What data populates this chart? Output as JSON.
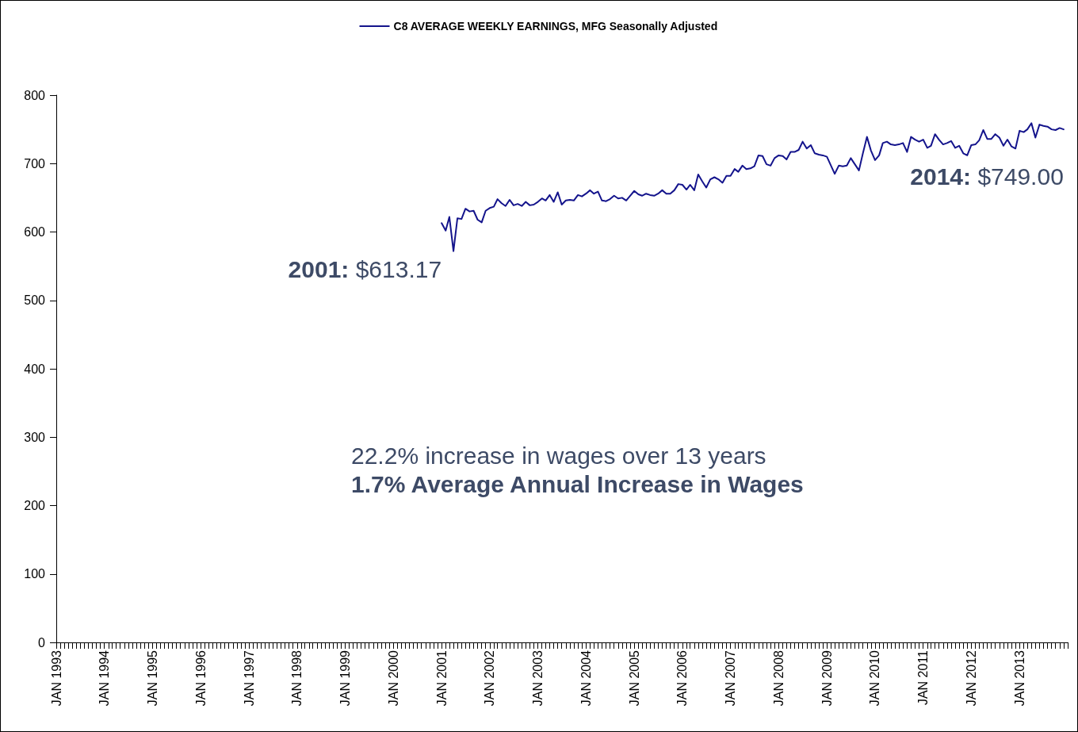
{
  "chart_data": {
    "type": "line",
    "series": [
      {
        "name": "C8 AVERAGE WEEKLY EARNINGS, MFG Seasonally Adjusted",
        "color": "#14148c",
        "x": [
          "2001-01",
          "2001-02",
          "2001-03",
          "2001-04",
          "2001-05",
          "2001-06",
          "2001-07",
          "2001-08",
          "2001-09",
          "2001-10",
          "2001-11",
          "2001-12",
          "2002-01",
          "2002-02",
          "2002-03",
          "2002-04",
          "2002-05",
          "2002-06",
          "2002-07",
          "2002-08",
          "2002-09",
          "2002-10",
          "2002-11",
          "2002-12",
          "2003-01",
          "2003-02",
          "2003-03",
          "2003-04",
          "2003-05",
          "2003-06",
          "2003-07",
          "2003-08",
          "2003-09",
          "2003-10",
          "2003-11",
          "2003-12",
          "2004-01",
          "2004-02",
          "2004-03",
          "2004-04",
          "2004-05",
          "2004-06",
          "2004-07",
          "2004-08",
          "2004-09",
          "2004-10",
          "2004-11",
          "2004-12",
          "2005-01",
          "2005-02",
          "2005-03",
          "2005-04",
          "2005-05",
          "2005-06",
          "2005-07",
          "2005-08",
          "2005-09",
          "2005-10",
          "2005-11",
          "2005-12",
          "2006-01",
          "2006-02",
          "2006-03",
          "2006-04",
          "2006-05",
          "2006-06",
          "2006-07",
          "2006-08",
          "2006-09",
          "2006-10",
          "2006-11",
          "2006-12",
          "2007-01",
          "2007-02",
          "2007-03",
          "2007-04",
          "2007-05",
          "2007-06",
          "2007-07",
          "2007-08",
          "2007-09",
          "2007-10",
          "2007-11",
          "2007-12",
          "2008-01",
          "2008-02",
          "2008-03",
          "2008-04",
          "2008-05",
          "2008-06",
          "2008-07",
          "2008-08",
          "2008-09",
          "2008-10",
          "2008-11",
          "2008-12",
          "2009-01",
          "2009-03",
          "2009-04",
          "2009-05",
          "2009-06",
          "2009-07",
          "2009-08",
          "2009-09",
          "2009-10",
          "2009-11",
          "2009-12",
          "2010-01",
          "2010-02",
          "2010-03",
          "2010-04",
          "2010-05",
          "2010-06",
          "2010-07",
          "2010-08",
          "2010-09",
          "2010-10",
          "2010-11",
          "2010-12",
          "2011-01",
          "2011-02",
          "2011-03",
          "2011-04",
          "2011-05",
          "2011-06",
          "2011-07",
          "2011-08",
          "2011-09",
          "2011-10",
          "2011-11",
          "2011-12",
          "2012-01",
          "2012-02",
          "2012-03",
          "2012-04",
          "2012-05",
          "2012-06",
          "2012-07",
          "2012-08",
          "2012-09",
          "2012-10",
          "2012-11",
          "2012-12",
          "2013-01",
          "2013-02",
          "2013-03",
          "2013-04",
          "2013-05",
          "2013-06",
          "2013-07",
          "2013-08",
          "2013-09",
          "2013-10",
          "2013-11",
          "2013-12"
        ],
        "values": [
          613,
          602,
          622,
          572,
          620,
          619,
          634,
          630,
          631,
          618,
          614,
          631,
          635,
          637,
          648,
          642,
          638,
          647,
          639,
          641,
          638,
          644,
          639,
          640,
          644,
          649,
          646,
          654,
          644,
          658,
          640,
          646,
          647,
          646,
          654,
          652,
          656,
          661,
          656,
          659,
          646,
          645,
          648,
          653,
          649,
          650,
          646,
          653,
          660,
          655,
          653,
          656,
          654,
          653,
          656,
          661,
          656,
          656,
          661,
          670,
          669,
          662,
          669,
          661,
          684,
          674,
          665,
          677,
          680,
          677,
          672,
          682,
          682,
          692,
          688,
          697,
          692,
          693,
          696,
          712,
          711,
          699,
          697,
          708,
          712,
          711,
          706,
          717,
          717,
          720,
          732,
          722,
          727,
          715,
          713,
          712,
          710,
          685,
          697,
          696,
          697,
          708,
          699,
          690,
          715,
          739,
          719,
          705,
          712,
          730,
          732,
          728,
          727,
          728,
          730,
          717,
          739,
          735,
          732,
          735,
          723,
          726,
          743,
          735,
          728,
          730,
          733,
          723,
          726,
          715,
          712,
          727,
          728,
          734,
          749,
          736,
          736,
          743,
          738,
          726,
          735,
          725,
          722,
          748,
          746,
          750,
          759,
          738,
          757,
          755,
          754,
          750,
          749,
          752,
          750
        ]
      }
    ],
    "xlim": [
      "1993-01",
      "2014-01"
    ],
    "xticks": [
      {
        "value": "1993-01",
        "label": "JAN 1993"
      },
      {
        "value": "1994-01",
        "label": "JAN 1994"
      },
      {
        "value": "1995-01",
        "label": "JAN 1995"
      },
      {
        "value": "1996-01",
        "label": "JAN 1996"
      },
      {
        "value": "1997-01",
        "label": "JAN 1997"
      },
      {
        "value": "1998-01",
        "label": "JAN 1998"
      },
      {
        "value": "1999-01",
        "label": "JAN 1999"
      },
      {
        "value": "2000-01",
        "label": "JAN 2000"
      },
      {
        "value": "2001-01",
        "label": "JAN 2001"
      },
      {
        "value": "2002-01",
        "label": "JAN 2002"
      },
      {
        "value": "2003-01",
        "label": "JAN 2003"
      },
      {
        "value": "2004-01",
        "label": "JAN 2004"
      },
      {
        "value": "2005-01",
        "label": "JAN 2005"
      },
      {
        "value": "2006-01",
        "label": "JAN 2006"
      },
      {
        "value": "2007-01",
        "label": "JAN 2007"
      },
      {
        "value": "2008-01",
        "label": "JAN 2008"
      },
      {
        "value": "2009-01",
        "label": "JAN 2009"
      },
      {
        "value": "2010-01",
        "label": "JAN 2010"
      },
      {
        "value": "2011-01",
        "label": "JAN 2011"
      },
      {
        "value": "2012-01",
        "label": "JAN 2012"
      },
      {
        "value": "2013-01",
        "label": "JAN 2013"
      }
    ],
    "ylim": [
      0,
      800
    ],
    "yticks": [
      0,
      100,
      200,
      300,
      400,
      500,
      600,
      700,
      800
    ],
    "grid": false,
    "legend": "top",
    "marker": "none",
    "line_style": "solid",
    "annotations": [
      {
        "text": "2001: $613.17",
        "x": "2001-01",
        "y": 613.17
      },
      {
        "text": "2014: $749.00",
        "x": "2013-12",
        "y": 749
      },
      "22.2% increase in wages over 13 years",
      "1.7% Average Annual Increase in Wages"
    ]
  }
}
